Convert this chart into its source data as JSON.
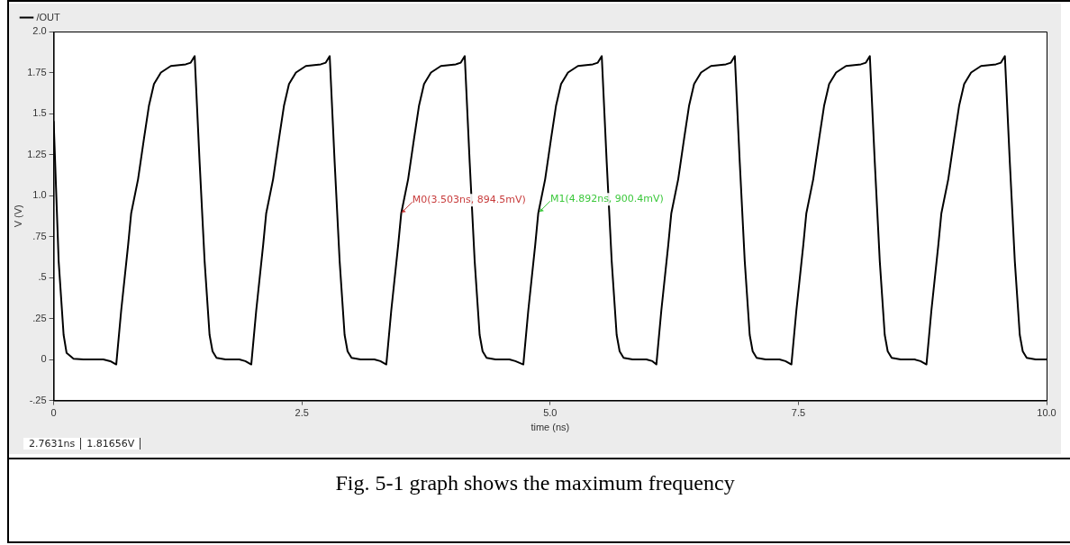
{
  "chart_data": {
    "type": "line",
    "title": "Fig. 5-1 graph shows the maximum frequency",
    "xlabel": "time (ns)",
    "ylabel": "V (V)",
    "xlim": [
      0,
      10
    ],
    "ylim": [
      -0.25,
      2
    ],
    "xticks": [
      0,
      2.5,
      {
        "value": 5,
        "label": "5.0"
      },
      {
        "value": 7.5,
        "label": "7.5"
      },
      {
        "value": 10,
        "label": "10.0"
      }
    ],
    "yticks": [
      {
        "value": -0.25,
        "label": "-.25"
      },
      0,
      {
        "value": 0.25,
        "label": ".25"
      },
      {
        "value": 0.5,
        "label": ".5"
      },
      {
        "value": 0.75,
        "label": ".75"
      },
      {
        "value": 1,
        "label": "1.0"
      },
      1.25,
      1.5,
      1.75,
      {
        "value": 2,
        "label": "2.0"
      }
    ],
    "legend": "top left",
    "marker": "none",
    "line_style": "solid",
    "series": [
      {
        "name": "/OUT",
        "color": "#000000",
        "x": [
          0,
          0.05,
          0.1,
          0.13,
          0.2,
          0.3,
          0.5,
          0.57,
          0.63,
          0.68,
          0.75,
          0.78,
          0.85,
          0.91,
          0.96,
          1.01,
          1.08,
          1.18,
          1.33,
          1.38,
          1.42,
          1.47,
          1.52,
          1.57,
          1.6,
          1.64,
          1.73,
          1.87,
          1.93,
          1.99,
          2.04,
          2.11,
          2.14,
          2.21,
          2.27,
          2.32,
          2.37,
          2.44,
          2.54,
          2.69,
          2.74,
          2.78,
          2.83,
          2.88,
          2.93,
          2.96,
          3,
          3.09,
          3.23,
          3.29,
          3.35,
          3.4,
          3.47,
          3.5,
          3.57,
          3.63,
          3.68,
          3.73,
          3.8,
          3.9,
          4.05,
          4.1,
          4.14,
          4.19,
          4.24,
          4.29,
          4.32,
          4.36,
          4.45,
          4.59,
          4.65,
          4.73,
          4.78,
          4.85,
          4.88,
          4.95,
          5.01,
          5.06,
          5.11,
          5.18,
          5.28,
          5.43,
          5.48,
          5.52,
          5.57,
          5.62,
          5.67,
          5.7,
          5.74,
          5.83,
          5.97,
          6.03,
          6.07,
          6.12,
          6.19,
          6.22,
          6.29,
          6.35,
          6.4,
          6.45,
          6.52,
          6.62,
          6.77,
          6.82,
          6.86,
          6.91,
          6.96,
          7.01,
          7.04,
          7.08,
          7.17,
          7.31,
          7.37,
          7.43,
          7.48,
          7.55,
          7.58,
          7.65,
          7.71,
          7.76,
          7.81,
          7.88,
          7.98,
          8.13,
          8.18,
          8.22,
          8.27,
          8.32,
          8.37,
          8.4,
          8.44,
          8.53,
          8.67,
          8.73,
          8.79,
          8.84,
          8.91,
          8.94,
          9.01,
          9.07,
          9.12,
          9.17,
          9.24,
          9.34,
          9.49,
          9.54,
          9.58,
          9.63,
          9.68,
          9.73,
          9.76,
          9.8,
          9.89,
          10
        ],
        "values": [
          1.45,
          0.6,
          0.15,
          0.04,
          0.005,
          0,
          0,
          -0.01,
          -0.03,
          0.3,
          0.7,
          0.89,
          1.1,
          1.35,
          1.55,
          1.68,
          1.75,
          1.79,
          1.8,
          1.81,
          1.85,
          1.2,
          0.6,
          0.15,
          0.05,
          0.01,
          0,
          0,
          -0.01,
          -0.03,
          0.3,
          0.7,
          0.89,
          1.1,
          1.35,
          1.55,
          1.68,
          1.75,
          1.79,
          1.8,
          1.81,
          1.85,
          1.2,
          0.6,
          0.15,
          0.05,
          0.01,
          0,
          0,
          -0.01,
          -0.03,
          0.3,
          0.7,
          0.89,
          1.1,
          1.35,
          1.55,
          1.68,
          1.75,
          1.79,
          1.8,
          1.81,
          1.85,
          1.2,
          0.6,
          0.15,
          0.05,
          0.01,
          0,
          0,
          -0.01,
          -0.03,
          0.3,
          0.7,
          0.89,
          1.1,
          1.35,
          1.55,
          1.68,
          1.75,
          1.79,
          1.8,
          1.81,
          1.85,
          1.2,
          0.6,
          0.15,
          0.05,
          0.01,
          0,
          0,
          -0.01,
          -0.03,
          0.3,
          0.7,
          0.89,
          1.1,
          1.35,
          1.55,
          1.68,
          1.75,
          1.79,
          1.8,
          1.81,
          1.85,
          1.2,
          0.6,
          0.15,
          0.05,
          0.01,
          0,
          0,
          -0.01,
          -0.03,
          0.3,
          0.7,
          0.89,
          1.1,
          1.35,
          1.55,
          1.68,
          1.75,
          1.79,
          1.8,
          1.81,
          1.85,
          1.2,
          0.6,
          0.15,
          0.05,
          0.01,
          0,
          0,
          -0.01,
          -0.03,
          0.3,
          0.7,
          0.89,
          1.1,
          1.35,
          1.55,
          1.68,
          1.75,
          1.79,
          1.8,
          1.81,
          1.85,
          1.2,
          0.6,
          0.15,
          0.05,
          0.01,
          0,
          0
        ]
      }
    ],
    "annotations": [
      {
        "text": "M0(3.503ns, 894.5mV)",
        "x": 3.503,
        "y": 0.8945
      },
      {
        "text": "M1(4.892ns, 900.4mV)",
        "x": 4.892,
        "y": 0.9004
      },
      "2.7631ns",
      "1.81656V"
    ]
  }
}
